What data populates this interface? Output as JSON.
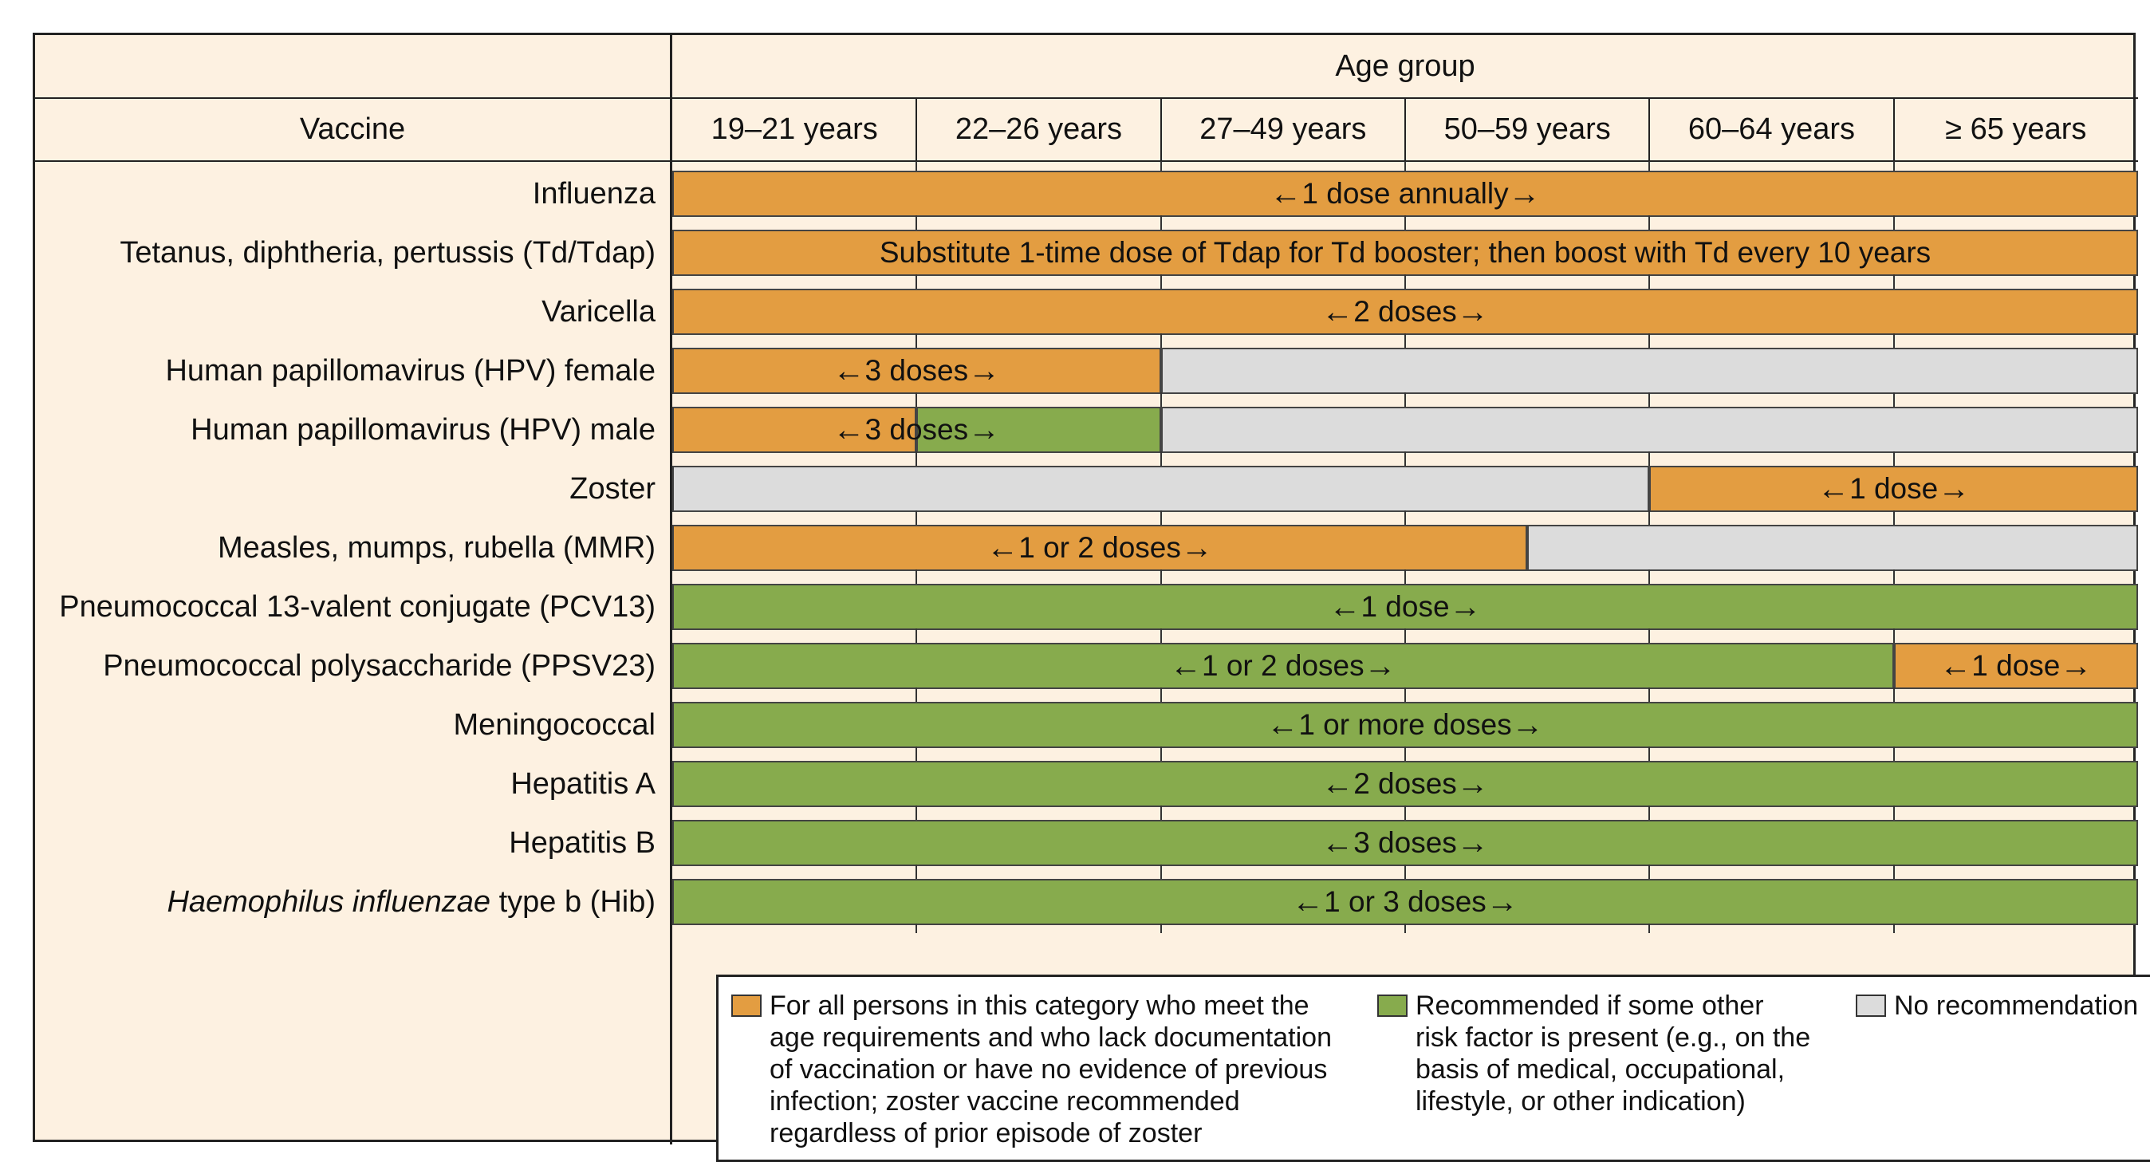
{
  "header": {
    "age_group": "Age group",
    "vaccine": "Vaccine",
    "ages": [
      "19–21 years",
      "22–26 years",
      "27–49 years",
      "50–59 years",
      "60–64 years",
      "≥ 65 years"
    ]
  },
  "colors": {
    "orange": "#e39d41",
    "green": "#87ab4d",
    "gray": "#dcdcdc",
    "background": "#fdf1e1"
  },
  "rows": [
    {
      "vaccine": "Influenza",
      "segments": [
        {
          "from_group": 0,
          "to_group": 6,
          "color": "orange"
        }
      ],
      "labels": [
        {
          "text": "1 dose annually",
          "from_group": 0,
          "to_group": 6,
          "arrows": true
        }
      ]
    },
    {
      "vaccine": "Tetanus, diphtheria, pertussis (Td/Tdap)",
      "segments": [
        {
          "from_group": 0,
          "to_group": 6,
          "color": "orange"
        }
      ],
      "labels": [
        {
          "text": "Substitute 1-time dose of Tdap for Td booster; then boost with Td every 10 years",
          "from_group": 0,
          "to_group": 6,
          "arrows": false
        }
      ]
    },
    {
      "vaccine": "Varicella",
      "segments": [
        {
          "from_group": 0,
          "to_group": 6,
          "color": "orange"
        }
      ],
      "labels": [
        {
          "text": "2 doses",
          "from_group": 0,
          "to_group": 6,
          "arrows": true
        }
      ]
    },
    {
      "vaccine": "Human papillomavirus (HPV) female",
      "segments": [
        {
          "from_group": 0,
          "to_group": 2,
          "color": "orange"
        },
        {
          "from_group": 2,
          "to_group": 6,
          "color": "gray"
        }
      ],
      "labels": [
        {
          "text": "3 doses",
          "from_group": 0,
          "to_group": 2,
          "arrows": true
        }
      ]
    },
    {
      "vaccine": "Human papillomavirus (HPV) male",
      "segments": [
        {
          "from_group": 0,
          "to_group": 1,
          "color": "orange"
        },
        {
          "from_group": 1,
          "to_group": 2,
          "color": "green"
        },
        {
          "from_group": 2,
          "to_group": 6,
          "color": "gray"
        }
      ],
      "labels": [
        {
          "text": "3 doses",
          "from_group": 0,
          "to_group": 2,
          "arrows": true
        }
      ]
    },
    {
      "vaccine": "Zoster",
      "segments": [
        {
          "from_group": 0,
          "to_group": 4,
          "color": "gray"
        },
        {
          "from_group": 4,
          "to_group": 6,
          "color": "orange"
        }
      ],
      "labels": [
        {
          "text": "1 dose",
          "from_group": 4,
          "to_group": 6,
          "arrows": true
        }
      ]
    },
    {
      "vaccine": "Measles, mumps, rubella (MMR)",
      "segments": [
        {
          "from_group": 0,
          "to_group": 3.5,
          "color": "orange"
        },
        {
          "from_group": 3.5,
          "to_group": 6,
          "color": "gray"
        }
      ],
      "labels": [
        {
          "text": "1 or 2 doses",
          "from_group": 0,
          "to_group": 3.5,
          "arrows": true
        }
      ]
    },
    {
      "vaccine": "Pneumococcal 13-valent conjugate (PCV13)",
      "segments": [
        {
          "from_group": 0,
          "to_group": 6,
          "color": "green"
        }
      ],
      "labels": [
        {
          "text": "1 dose",
          "from_group": 0,
          "to_group": 6,
          "arrows": true
        }
      ]
    },
    {
      "vaccine": "Pneumococcal polysaccharide (PPSV23)",
      "segments": [
        {
          "from_group": 0,
          "to_group": 5,
          "color": "green"
        },
        {
          "from_group": 5,
          "to_group": 6,
          "color": "orange"
        }
      ],
      "labels": [
        {
          "text": "1 or 2 doses",
          "from_group": 0,
          "to_group": 5,
          "arrows": true
        },
        {
          "text": "1 dose",
          "from_group": 5,
          "to_group": 6,
          "arrows": true
        }
      ]
    },
    {
      "vaccine": "Meningococcal",
      "segments": [
        {
          "from_group": 0,
          "to_group": 6,
          "color": "green"
        }
      ],
      "labels": [
        {
          "text": "1 or more doses",
          "from_group": 0,
          "to_group": 6,
          "arrows": true
        }
      ]
    },
    {
      "vaccine": "Hepatitis A",
      "segments": [
        {
          "from_group": 0,
          "to_group": 6,
          "color": "green"
        }
      ],
      "labels": [
        {
          "text": "2 doses",
          "from_group": 0,
          "to_group": 6,
          "arrows": true
        }
      ]
    },
    {
      "vaccine": "Hepatitis B",
      "segments": [
        {
          "from_group": 0,
          "to_group": 6,
          "color": "green"
        }
      ],
      "labels": [
        {
          "text": "3 doses",
          "from_group": 0,
          "to_group": 6,
          "arrows": true
        }
      ]
    },
    {
      "vaccine_italic": "Haemophilus influenzae",
      "vaccine": " type b (Hib)",
      "segments": [
        {
          "from_group": 0,
          "to_group": 6,
          "color": "green"
        }
      ],
      "labels": [
        {
          "text": "1 or 3 doses",
          "from_group": 0,
          "to_group": 6,
          "arrows": true
        }
      ]
    }
  ],
  "legend": [
    {
      "color": "orange",
      "lines": [
        "For all persons in this category who meet the",
        "age requirements and who lack documentation",
        "of vaccination or have no evidence of previous",
        "infection; zoster vaccine recommended",
        "regardless of prior episode of zoster"
      ]
    },
    {
      "color": "green",
      "lines": [
        "Recommended if some other",
        "risk factor is present (e.g., on the",
        "basis of medical, occupational,",
        "lifestyle, or other indication)"
      ]
    },
    {
      "color": "gray",
      "lines": [
        "No recommendation"
      ]
    }
  ]
}
